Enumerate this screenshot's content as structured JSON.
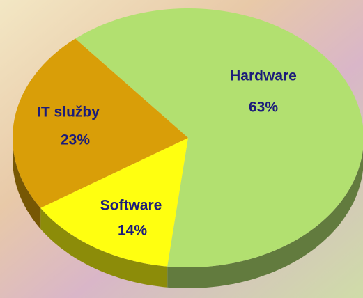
{
  "chart_data": {
    "type": "pie",
    "categories": [
      "Hardware",
      "Software",
      "IT služby"
    ],
    "values": [
      63,
      14,
      23
    ],
    "value_labels": [
      "63%",
      "14%",
      "23%"
    ],
    "colors": [
      "#b2e070",
      "#ffff10",
      "#d99e08"
    ]
  }
}
